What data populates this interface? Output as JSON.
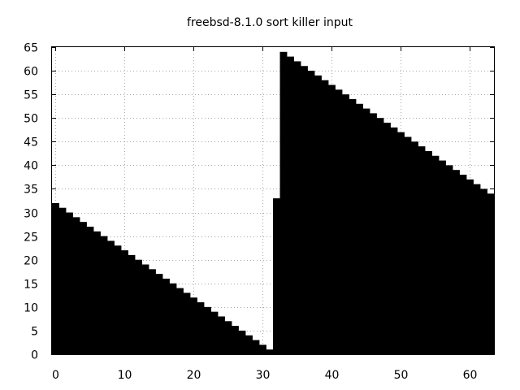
{
  "chart_data": {
    "type": "bar",
    "title": "freebsd-8.1.0 sort killer input",
    "xlabel": "",
    "ylabel": "",
    "xlim": [
      -0.5,
      63.5
    ],
    "ylim": [
      0,
      65
    ],
    "xticks": [
      0,
      10,
      20,
      30,
      40,
      50,
      60
    ],
    "yticks": [
      0,
      5,
      10,
      15,
      20,
      25,
      30,
      35,
      40,
      45,
      50,
      55,
      60,
      65
    ],
    "grid": true,
    "bar_color": "#000000",
    "x": [
      0,
      1,
      2,
      3,
      4,
      5,
      6,
      7,
      8,
      9,
      10,
      11,
      12,
      13,
      14,
      15,
      16,
      17,
      18,
      19,
      20,
      21,
      22,
      23,
      24,
      25,
      26,
      27,
      28,
      29,
      30,
      31,
      32,
      33,
      34,
      35,
      36,
      37,
      38,
      39,
      40,
      41,
      42,
      43,
      44,
      45,
      46,
      47,
      48,
      49,
      50,
      51,
      52,
      53,
      54,
      55,
      56,
      57,
      58,
      59,
      60,
      61,
      62,
      63
    ],
    "values": [
      32,
      31,
      30,
      29,
      28,
      27,
      26,
      25,
      24,
      23,
      22,
      21,
      20,
      19,
      18,
      17,
      16,
      15,
      14,
      13,
      12,
      11,
      10,
      9,
      8,
      7,
      6,
      5,
      4,
      3,
      2,
      1,
      33,
      64,
      63,
      62,
      61,
      60,
      59,
      58,
      57,
      56,
      55,
      54,
      53,
      52,
      51,
      50,
      49,
      48,
      47,
      46,
      45,
      44,
      43,
      42,
      41,
      40,
      39,
      38,
      37,
      36,
      35,
      34
    ]
  }
}
